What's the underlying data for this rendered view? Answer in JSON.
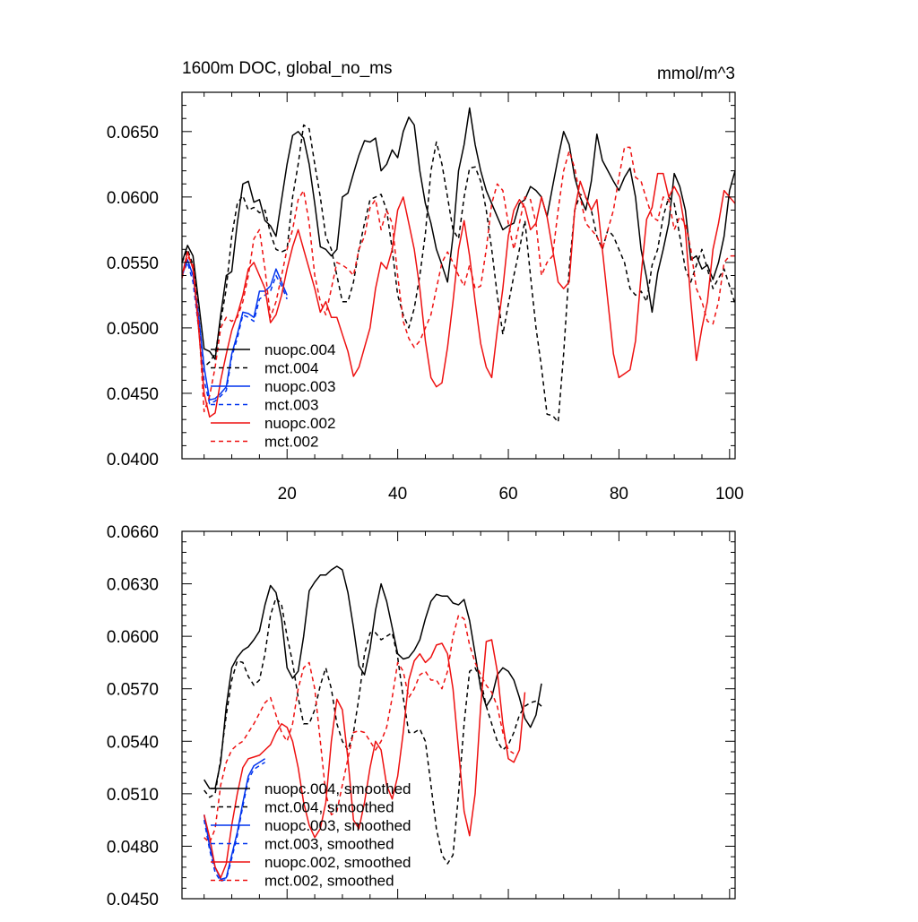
{
  "chart_data": [
    {
      "type": "line",
      "title": "1600m DOC, global_no_ms",
      "units": "mmol/m^3",
      "xlim": [
        1,
        101
      ],
      "ylim": [
        0.04,
        0.068
      ],
      "xticks": [
        20,
        40,
        60,
        80,
        100
      ],
      "xtick_labels": [
        "20",
        "40",
        "60",
        "80",
        "100"
      ],
      "yticks": [
        0.04,
        0.045,
        0.05,
        0.055,
        0.06,
        0.065
      ],
      "ytick_labels": [
        "0.0400",
        "0.0450",
        "0.0500",
        "0.0550",
        "0.0600",
        "0.0650"
      ],
      "legend_position": "lower-left",
      "series": [
        {
          "name": "nuopc.004",
          "color": "#000000",
          "dash": "solid",
          "x_start": 1,
          "values": [
            0.055,
            0.0563,
            0.0555,
            0.052,
            0.0484,
            0.0482,
            0.0476,
            0.051,
            0.054,
            0.0543,
            0.058,
            0.061,
            0.0612,
            0.0596,
            0.0598,
            0.0582,
            0.0578,
            0.057,
            0.0598,
            0.0625,
            0.0647,
            0.065,
            0.0645,
            0.0625,
            0.0595,
            0.0562,
            0.056,
            0.0555,
            0.056,
            0.06,
            0.0603,
            0.0618,
            0.0632,
            0.0643,
            0.0642,
            0.0645,
            0.062,
            0.0625,
            0.0636,
            0.063,
            0.065,
            0.0661,
            0.0655,
            0.062,
            0.0595,
            0.058,
            0.056,
            0.0548,
            0.0535,
            0.057,
            0.062,
            0.064,
            0.0668,
            0.064,
            0.062,
            0.0605,
            0.0595,
            0.0585,
            0.0575,
            0.0578,
            0.058,
            0.0595,
            0.0598,
            0.0608,
            0.0605,
            0.06,
            0.0585,
            0.0608,
            0.063,
            0.065,
            0.064,
            0.0615,
            0.06,
            0.059,
            0.0612,
            0.0648,
            0.0628,
            0.062,
            0.0612,
            0.0605,
            0.0615,
            0.0622,
            0.06,
            0.056,
            0.0538,
            0.0512,
            0.0542,
            0.056,
            0.058,
            0.0618,
            0.0608,
            0.059,
            0.0552,
            0.0555,
            0.0545,
            0.0548,
            0.0537,
            0.055,
            0.057,
            0.0605,
            0.062
          ]
        },
        {
          "name": "mct.004",
          "color": "#000000",
          "dash": "dashed",
          "x_start": 1,
          "values": [
            0.055,
            0.056,
            0.0548,
            0.051,
            0.047,
            0.0474,
            0.048,
            0.0505,
            0.053,
            0.057,
            0.0595,
            0.0601,
            0.059,
            0.0592,
            0.0588,
            0.059,
            0.0572,
            0.056,
            0.0558,
            0.056,
            0.06,
            0.0625,
            0.0655,
            0.0652,
            0.0625,
            0.06,
            0.057,
            0.056,
            0.054,
            0.052,
            0.052,
            0.0535,
            0.056,
            0.058,
            0.0598,
            0.06,
            0.0602,
            0.059,
            0.056,
            0.0525,
            0.051,
            0.05,
            0.0515,
            0.054,
            0.0572,
            0.062,
            0.0642,
            0.0625,
            0.06,
            0.0575,
            0.0568,
            0.06,
            0.0622,
            0.0623,
            0.0612,
            0.059,
            0.056,
            0.0525,
            0.0495,
            0.0518,
            0.054,
            0.056,
            0.0582,
            0.054,
            0.05,
            0.047,
            0.0434,
            0.0433,
            0.0428,
            0.048,
            0.0545,
            0.059,
            0.0602,
            0.06,
            0.059,
            0.057,
            0.056,
            0.0575,
            0.057,
            0.056,
            0.055,
            0.053,
            0.0525,
            0.0528,
            0.052,
            0.0548,
            0.056,
            0.0585,
            0.06,
            0.0595,
            0.057,
            0.0545,
            0.0535,
            0.0548,
            0.056,
            0.0545,
            0.053,
            0.0538,
            0.0545,
            0.0532,
            0.0518
          ]
        },
        {
          "name": "nuopc.003",
          "color": "#0033ee",
          "dash": "solid",
          "x_start": 1,
          "values": [
            0.054,
            0.0552,
            0.054,
            0.051,
            0.047,
            0.0445,
            0.0446,
            0.045,
            0.0455,
            0.048,
            0.0495,
            0.0512,
            0.0511,
            0.0508,
            0.0528,
            0.0528,
            0.0532,
            0.0545,
            0.0535,
            0.0525
          ]
        },
        {
          "name": "mct.003",
          "color": "#0033ee",
          "dash": "dashed",
          "x_start": 1,
          "values": [
            0.054,
            0.055,
            0.0535,
            0.05,
            0.046,
            0.0442,
            0.0444,
            0.0448,
            0.0452,
            0.0478,
            0.0492,
            0.051,
            0.0508,
            0.0505,
            0.0522,
            0.0525,
            0.0528,
            0.054,
            0.0532,
            0.0522
          ]
        },
        {
          "name": "nuopc.002",
          "color": "#ee1111",
          "dash": "solid",
          "x_start": 1,
          "values": [
            0.054,
            0.0558,
            0.0545,
            0.05,
            0.045,
            0.0432,
            0.0435,
            0.046,
            0.048,
            0.0498,
            0.051,
            0.0525,
            0.0545,
            0.055,
            0.054,
            0.053,
            0.0504,
            0.051,
            0.0525,
            0.0545,
            0.0562,
            0.0575,
            0.056,
            0.0545,
            0.053,
            0.0512,
            0.052,
            0.0508,
            0.0508,
            0.0495,
            0.0482,
            0.0463,
            0.047,
            0.0485,
            0.05,
            0.053,
            0.055,
            0.0545,
            0.056,
            0.059,
            0.06,
            0.058,
            0.056,
            0.053,
            0.049,
            0.0462,
            0.0455,
            0.0458,
            0.0485,
            0.052,
            0.056,
            0.0582,
            0.0555,
            0.052,
            0.0488,
            0.047,
            0.0462,
            0.0498,
            0.053,
            0.057,
            0.059,
            0.0598,
            0.0592,
            0.0575,
            0.058,
            0.06,
            0.0585,
            0.056,
            0.0535,
            0.053,
            0.0535,
            0.059,
            0.0612,
            0.06,
            0.059,
            0.0598,
            0.056,
            0.052,
            0.048,
            0.0462,
            0.0465,
            0.0468,
            0.049,
            0.054,
            0.0583,
            0.0592,
            0.0618,
            0.0618,
            0.06,
            0.0608,
            0.06,
            0.0575,
            0.052,
            0.0475,
            0.05,
            0.052,
            0.056,
            0.058,
            0.0605,
            0.06,
            0.0595
          ]
        },
        {
          "name": "mct.002",
          "color": "#ee1111",
          "dash": "dashed",
          "x_start": 1,
          "values": [
            0.0538,
            0.0555,
            0.0548,
            0.0505,
            0.0436,
            0.0448,
            0.047,
            0.05,
            0.0508,
            0.0505,
            0.0508,
            0.052,
            0.054,
            0.0568,
            0.0575,
            0.0545,
            0.0508,
            0.052,
            0.054,
            0.056,
            0.0575,
            0.0598,
            0.0605,
            0.058,
            0.054,
            0.052,
            0.051,
            0.053,
            0.055,
            0.0548,
            0.0545,
            0.054,
            0.056,
            0.057,
            0.0592,
            0.0598,
            0.0575,
            0.059,
            0.058,
            0.054,
            0.0505,
            0.0492,
            0.0485,
            0.049,
            0.05,
            0.051,
            0.053,
            0.055,
            0.0558,
            0.055,
            0.054,
            0.0532,
            0.0548,
            0.053,
            0.0532,
            0.056,
            0.0595,
            0.061,
            0.0605,
            0.058,
            0.056,
            0.058,
            0.06,
            0.0598,
            0.058,
            0.054,
            0.055,
            0.0555,
            0.059,
            0.062,
            0.0635,
            0.0622,
            0.06,
            0.058,
            0.0575,
            0.057,
            0.056,
            0.0575,
            0.059,
            0.0615,
            0.0638,
            0.0638,
            0.0615,
            0.0612,
            0.0598,
            0.0585,
            0.0582,
            0.06,
            0.0598,
            0.0575,
            0.0585,
            0.058,
            0.056,
            0.053,
            0.052,
            0.0505,
            0.0503,
            0.052,
            0.055,
            0.0555,
            0.0555
          ]
        }
      ]
    },
    {
      "type": "line",
      "title": "",
      "xlim": [
        1,
        101
      ],
      "ylim": [
        0.045,
        0.066
      ],
      "xticks": [
        20,
        40,
        60,
        80,
        100
      ],
      "yticks": [
        0.045,
        0.048,
        0.051,
        0.054,
        0.057,
        0.06,
        0.063,
        0.066
      ],
      "ytick_labels": [
        "0.0450",
        "0.0480",
        "0.0510",
        "0.0540",
        "0.0570",
        "0.0600",
        "0.0630",
        "0.0660"
      ],
      "legend_position": "lower-left",
      "series": [
        {
          "name": "nuopc.004, smoothed",
          "color": "#000000",
          "dash": "solid",
          "x_start": 5,
          "values": [
            0.0518,
            0.0513,
            0.0513,
            0.0528,
            0.056,
            0.0582,
            0.0588,
            0.0592,
            0.0594,
            0.0598,
            0.0603,
            0.0618,
            0.0629,
            0.0625,
            0.061,
            0.0582,
            0.0576,
            0.058,
            0.06,
            0.0626,
            0.0631,
            0.0635,
            0.0635,
            0.0638,
            0.064,
            0.0638,
            0.0625,
            0.0605,
            0.0583,
            0.0578,
            0.0593,
            0.0615,
            0.063,
            0.062,
            0.0605,
            0.059,
            0.0587,
            0.0588,
            0.0592,
            0.0598,
            0.061,
            0.062,
            0.0624,
            0.0623,
            0.0623,
            0.0619,
            0.0618,
            0.0621,
            0.0609,
            0.059,
            0.057,
            0.056,
            0.0565,
            0.0578,
            0.0582,
            0.058,
            0.0575,
            0.0565,
            0.0553,
            0.0548,
            0.0555,
            0.0573
          ]
        },
        {
          "name": "mct.004, smoothed",
          "color": "#000000",
          "dash": "dashed",
          "x_start": 5,
          "values": [
            0.0512,
            0.0508,
            0.051,
            0.053,
            0.0555,
            0.0575,
            0.0586,
            0.0585,
            0.0577,
            0.0572,
            0.0575,
            0.059,
            0.0612,
            0.0622,
            0.0618,
            0.06,
            0.0585,
            0.0565,
            0.055,
            0.055,
            0.0558,
            0.0572,
            0.0582,
            0.057,
            0.055,
            0.054,
            0.0535,
            0.0545,
            0.0565,
            0.059,
            0.0602,
            0.0602,
            0.0598,
            0.06,
            0.0602,
            0.0588,
            0.0565,
            0.0545,
            0.0545,
            0.0547,
            0.054,
            0.0515,
            0.049,
            0.0475,
            0.047,
            0.0475,
            0.051,
            0.055,
            0.058,
            0.0582,
            0.0575,
            0.056,
            0.055,
            0.054,
            0.0535,
            0.0538,
            0.0545,
            0.0555,
            0.056,
            0.0562,
            0.0563,
            0.056
          ]
        },
        {
          "name": "nuopc.003, smoothed",
          "color": "#0033ee",
          "dash": "solid",
          "x_start": 5,
          "values": [
            0.0498,
            0.048,
            0.0468,
            0.0461,
            0.0462,
            0.0475,
            0.0488,
            0.0505,
            0.052,
            0.0526,
            0.0528,
            0.053
          ]
        },
        {
          "name": "mct.003, smoothed",
          "color": "#0033ee",
          "dash": "dashed",
          "x_start": 5,
          "values": [
            0.0495,
            0.0478,
            0.0465,
            0.046,
            0.0461,
            0.0473,
            0.0486,
            0.0503,
            0.0518,
            0.0524,
            0.0526,
            0.0528
          ]
        },
        {
          "name": "nuopc.002, smoothed",
          "color": "#ee1111",
          "dash": "solid",
          "x_start": 5,
          "values": [
            0.0498,
            0.0485,
            0.0468,
            0.0462,
            0.047,
            0.0492,
            0.051,
            0.0525,
            0.053,
            0.0531,
            0.0532,
            0.0535,
            0.0538,
            0.0545,
            0.055,
            0.0548,
            0.054,
            0.0525,
            0.0505,
            0.0492,
            0.0485,
            0.049,
            0.0505,
            0.054,
            0.0564,
            0.0558,
            0.053,
            0.0495,
            0.049,
            0.0505,
            0.0525,
            0.054,
            0.0535,
            0.0515,
            0.0507,
            0.052,
            0.0545,
            0.0575,
            0.0586,
            0.059,
            0.0585,
            0.0588,
            0.0595,
            0.0596,
            0.059,
            0.057,
            0.0535,
            0.05,
            0.0486,
            0.051,
            0.056,
            0.0597,
            0.0598,
            0.058,
            0.055,
            0.053,
            0.0528,
            0.0535,
            0.0568
          ]
        },
        {
          "name": "mct.002, smoothed",
          "color": "#ee1111",
          "dash": "dashed",
          "x_start": 5,
          "values": [
            0.0485,
            0.0482,
            0.049,
            0.0515,
            0.0528,
            0.0535,
            0.0538,
            0.054,
            0.0545,
            0.055,
            0.0556,
            0.0562,
            0.0565,
            0.0555,
            0.0545,
            0.054,
            0.055,
            0.057,
            0.0582,
            0.0585,
            0.057,
            0.054,
            0.051,
            0.0498,
            0.05,
            0.0515,
            0.053,
            0.0545,
            0.0546,
            0.0545,
            0.054,
            0.0535,
            0.054,
            0.0548,
            0.0565,
            0.0585,
            0.058,
            0.0565,
            0.057,
            0.0578,
            0.058,
            0.0575,
            0.0575,
            0.057,
            0.058,
            0.06,
            0.0612,
            0.061,
            0.0595,
            0.0585,
            0.0578,
            0.0572,
            0.0568,
            0.056,
            0.0545,
            0.0535,
            0.0533
          ]
        }
      ]
    }
  ]
}
